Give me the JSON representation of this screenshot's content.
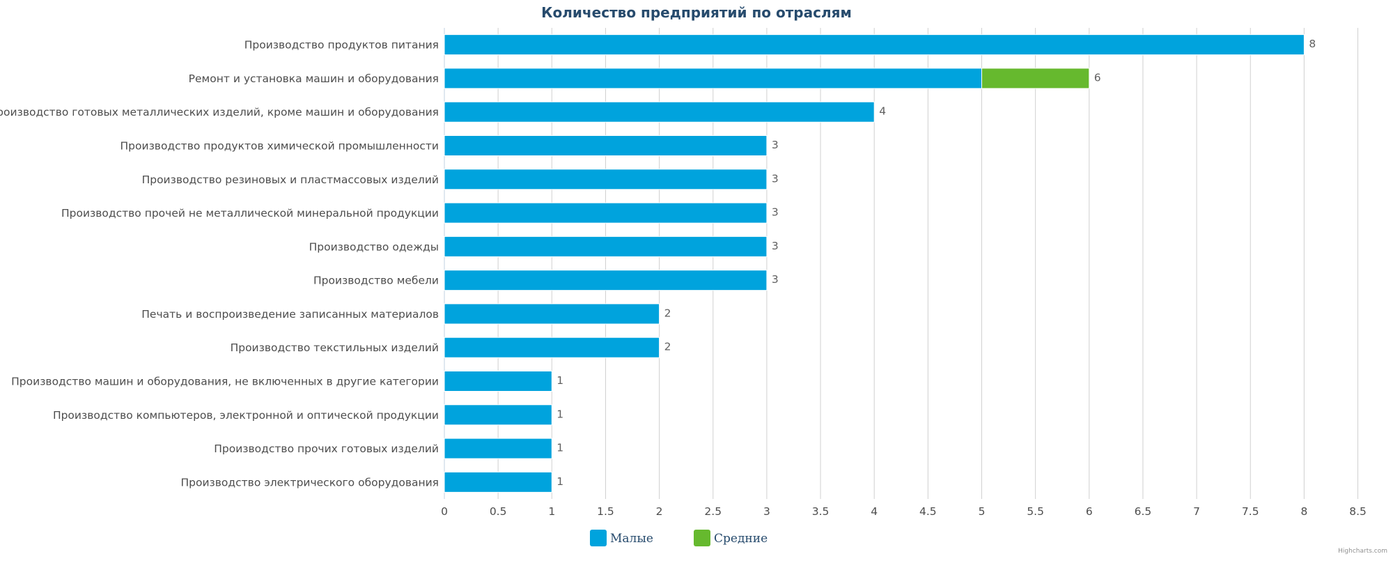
{
  "chart_data": {
    "type": "bar",
    "orientation": "horizontal",
    "stacked": true,
    "title": "Количество предприятий по отраслям",
    "categories": [
      "Производство продуктов питания",
      "Ремонт и установка машин и оборудования",
      "Производство готовых металлических изделий, кроме машин и оборудования",
      "Производство продуктов химической промышленности",
      "Производство резиновых и пластмассовых изделий",
      "Производство прочей не металлической минеральной продукции",
      "Производство одежды",
      "Производство мебели",
      "Печать и воспроизведение записанных материалов",
      "Производство текстильных изделий",
      "Производство машин и оборудования, не включенных в другие категории",
      "Производство компьютеров, электронной и оптической продукции",
      "Производство прочих готовых изделий",
      "Производство электрического оборудования"
    ],
    "series": [
      {
        "name": "Малые",
        "color": "#00a3dd",
        "values": [
          8,
          5,
          4,
          3,
          3,
          3,
          3,
          3,
          2,
          2,
          1,
          1,
          1,
          1
        ]
      },
      {
        "name": "Средние",
        "color": "#66b92e",
        "values": [
          0,
          1,
          0,
          0,
          0,
          0,
          0,
          0,
          0,
          0,
          0,
          0,
          0,
          0
        ]
      }
    ],
    "totals": [
      8,
      6,
      4,
      3,
      3,
      3,
      3,
      3,
      2,
      2,
      1,
      1,
      1,
      1
    ],
    "xlim": [
      0,
      8.5
    ],
    "xticks": [
      "0",
      "0.5",
      "1",
      "1.5",
      "2",
      "2.5",
      "3",
      "3.5",
      "4",
      "4.5",
      "5",
      "5.5",
      "6",
      "6.5",
      "7",
      "7.5",
      "8",
      "8.5"
    ],
    "grid": true,
    "legend_position": "bottom-center"
  },
  "credits": "Highcharts.com"
}
